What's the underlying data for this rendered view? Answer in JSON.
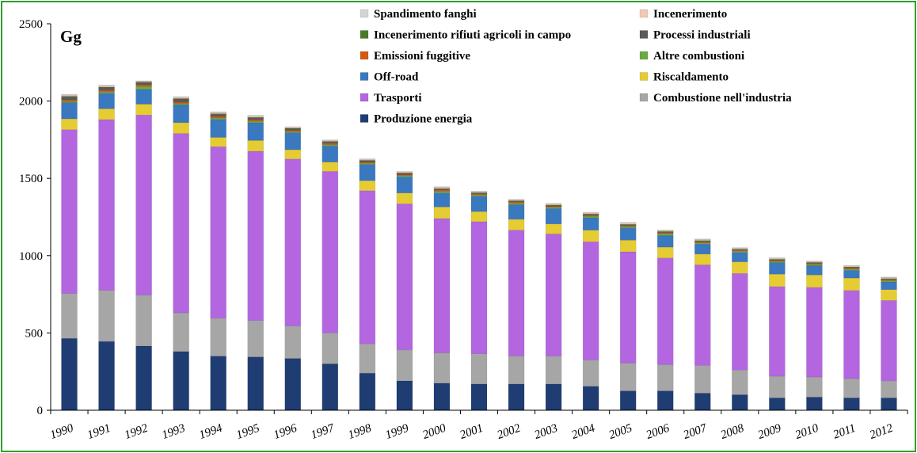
{
  "chart_data": {
    "type": "bar",
    "stacked": true,
    "unit_label": "Gg",
    "ylim": [
      0,
      2500
    ],
    "yticks": [
      0,
      500,
      1000,
      1500,
      2000,
      2500
    ],
    "grid": false,
    "legend_placement": "top",
    "categories": [
      "1990",
      "1991",
      "1992",
      "1993",
      "1994",
      "1995",
      "1996",
      "1997",
      "1998",
      "1999",
      "2000",
      "2001",
      "2002",
      "2003",
      "2004",
      "2005",
      "2006",
      "2007",
      "2008",
      "2009",
      "2010",
      "2011",
      "2012"
    ],
    "series": [
      {
        "name": "Produzione energia",
        "color": "#1f3c73",
        "values": [
          465,
          445,
          415,
          380,
          350,
          345,
          335,
          300,
          240,
          190,
          175,
          170,
          170,
          170,
          155,
          125,
          125,
          110,
          100,
          80,
          85,
          80,
          80
        ]
      },
      {
        "name": "Combustione nell'industria",
        "color": "#a6a6a6",
        "values": [
          290,
          330,
          330,
          250,
          245,
          235,
          210,
          200,
          190,
          200,
          195,
          195,
          180,
          180,
          170,
          180,
          170,
          180,
          160,
          140,
          130,
          125,
          110
        ]
      },
      {
        "name": "Trasporti",
        "color": "#b366e0",
        "values": [
          1060,
          1105,
          1165,
          1160,
          1110,
          1095,
          1080,
          1045,
          990,
          945,
          870,
          855,
          815,
          790,
          765,
          720,
          690,
          650,
          625,
          580,
          580,
          570,
          520
        ]
      },
      {
        "name": "Riscaldamento",
        "color": "#e6cc33",
        "values": [
          70,
          70,
          70,
          70,
          60,
          70,
          60,
          60,
          65,
          70,
          75,
          65,
          70,
          65,
          75,
          75,
          70,
          70,
          75,
          80,
          80,
          80,
          70
        ]
      },
      {
        "name": "Off-road",
        "color": "#3a78c0",
        "values": [
          105,
          100,
          95,
          115,
          115,
          115,
          110,
          105,
          105,
          105,
          90,
          100,
          95,
          100,
          80,
          80,
          75,
          65,
          60,
          75,
          60,
          50,
          50
        ]
      },
      {
        "name": "Altre combustioni",
        "color": "#6aaa40",
        "values": [
          8,
          8,
          20,
          8,
          10,
          10,
          8,
          8,
          8,
          8,
          10,
          8,
          8,
          8,
          10,
          8,
          12,
          8,
          8,
          8,
          8,
          8,
          8
        ]
      },
      {
        "name": "Emissioni fuggitive",
        "color": "#d45a14",
        "values": [
          10,
          10,
          10,
          10,
          10,
          10,
          8,
          8,
          8,
          6,
          8,
          6,
          8,
          6,
          6,
          6,
          6,
          6,
          6,
          6,
          6,
          6,
          6
        ]
      },
      {
        "name": "Processi industriali",
        "color": "#5a5a5a",
        "values": [
          20,
          20,
          15,
          20,
          15,
          12,
          10,
          10,
          8,
          8,
          8,
          6,
          6,
          6,
          6,
          6,
          6,
          6,
          5,
          5,
          5,
          5,
          5
        ]
      },
      {
        "name": "Incenerimento rifiuti agricoli in campo",
        "color": "#4a7a28",
        "values": [
          3,
          3,
          3,
          3,
          3,
          3,
          3,
          3,
          3,
          3,
          3,
          3,
          3,
          3,
          3,
          3,
          3,
          3,
          3,
          3,
          3,
          3,
          3
        ]
      },
      {
        "name": "Incenerimento",
        "color": "#f0c8b4",
        "values": [
          8,
          8,
          5,
          8,
          8,
          8,
          6,
          6,
          6,
          6,
          8,
          6,
          6,
          6,
          6,
          8,
          6,
          6,
          6,
          6,
          5,
          6,
          6
        ]
      },
      {
        "name": "Spandimento fanghi",
        "color": "#d4d4d4",
        "values": [
          5,
          5,
          3,
          5,
          5,
          5,
          4,
          4,
          4,
          4,
          4,
          4,
          4,
          4,
          4,
          4,
          4,
          4,
          4,
          4,
          4,
          4,
          4
        ]
      }
    ],
    "legend_order": [
      "Spandimento fanghi",
      "Incenerimento",
      "Incenerimento rifiuti agricoli in campo",
      "Processi industriali",
      "Emissioni fuggitive",
      "Altre combustioni",
      "Off-road",
      "Riscaldamento",
      "Trasporti",
      "Combustione nell'industria",
      "Produzione energia"
    ]
  }
}
